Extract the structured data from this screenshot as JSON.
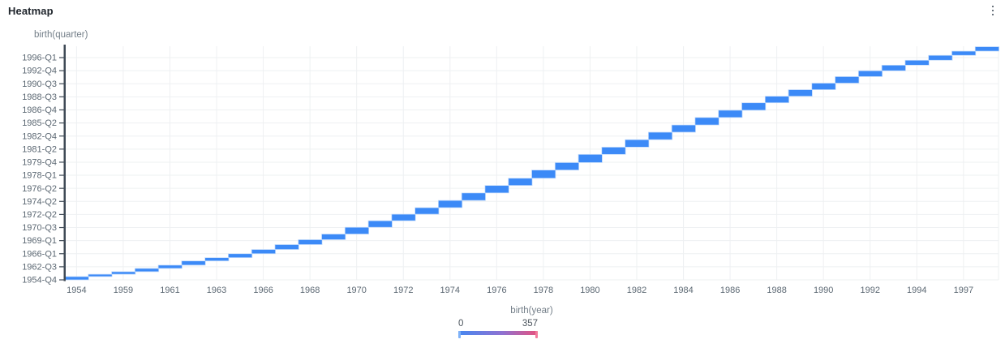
{
  "header": {
    "title": "Heatmap",
    "menu_icon": "kebab-menu"
  },
  "chart_data": {
    "type": "heatmap",
    "title": "Heatmap",
    "x_axis": {
      "title": "birth(year)",
      "tick_labels": [
        "1954",
        "1959",
        "1961",
        "1963",
        "1966",
        "1968",
        "1970",
        "1972",
        "1974",
        "1976",
        "1978",
        "1980",
        "1982",
        "1984",
        "1986",
        "1988",
        "1990",
        "1992",
        "1994",
        "1997"
      ]
    },
    "y_axis": {
      "title": "birth(quarter)",
      "tick_labels_top_to_bottom": [
        "1996-Q1",
        "1992-Q4",
        "1990-Q3",
        "1988-Q3",
        "1986-Q4",
        "1985-Q2",
        "1982-Q4",
        "1981-Q2",
        "1979-Q4",
        "1978-Q1",
        "1976-Q2",
        "1974-Q2",
        "1972-Q2",
        "1970-Q3",
        "1969-Q1",
        "1966-Q1",
        "1962-Q3",
        "1954-Q4"
      ]
    },
    "legend": {
      "min_label": "0",
      "max_label": "357"
    },
    "color_scale": {
      "min": 0,
      "max": 357,
      "min_color": "#4687F0",
      "mid_color": "#8E72D2",
      "max_color": "#E6517E",
      "handle_min_color": "#7FB2F8",
      "handle_max_color": "#F27A9B"
    },
    "cell_color": "#3C8AF7",
    "cell_border_color": "#C5DCFB",
    "grid_color": "#EEF0F2",
    "axis_color": "#3F4A56",
    "diagonal": {
      "description": "Blue cells form an ascending staircase: each birth quarter is filled only in the column of its birth year, rising from 1954-Q4 at bottom-left to the latest quarter at top-right.",
      "columns": 40,
      "step_top_fractions": [
        0.014,
        0.024,
        0.035,
        0.049,
        0.063,
        0.081,
        0.095,
        0.112,
        0.13,
        0.151,
        0.172,
        0.196,
        0.225,
        0.253,
        0.281,
        0.309,
        0.34,
        0.372,
        0.404,
        0.435,
        0.47,
        0.502,
        0.537,
        0.568,
        0.6,
        0.632,
        0.663,
        0.695,
        0.726,
        0.758,
        0.786,
        0.814,
        0.842,
        0.87,
        0.895,
        0.919,
        0.94,
        0.961,
        0.979,
        0.998
      ]
    }
  }
}
